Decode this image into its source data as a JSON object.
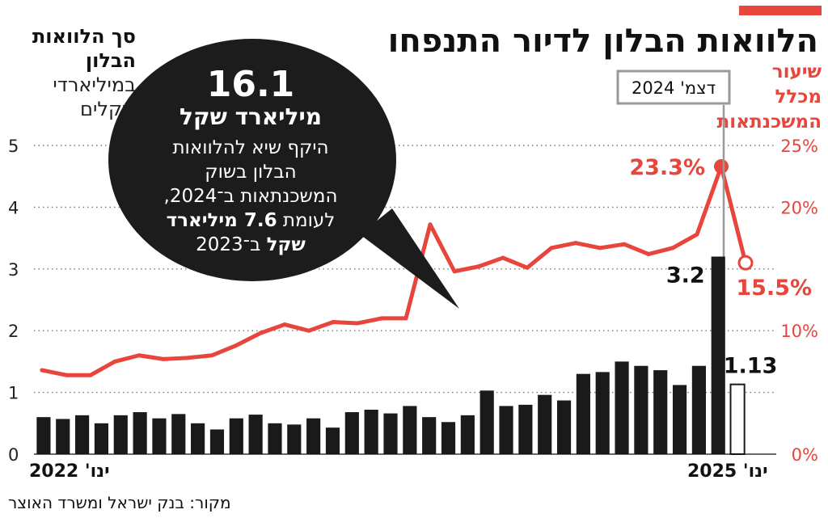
{
  "title": "הלוואות הבלון לדיור התנפחו",
  "left_axis_title": {
    "line1": "סך הלוואות",
    "line2": "הבלון",
    "line3": "במיליארדי",
    "line4": "שקלים"
  },
  "right_axis_title": {
    "line1": "שיעור",
    "line2": "מכלל",
    "line3": "המשכנתאות"
  },
  "callout": {
    "value": "16.1",
    "unit": "מיליארד שקל",
    "desc1": "היקף שיא להלוואות",
    "desc2": "הבלון בשוק",
    "desc3": "המשכנתאות ב־2024,",
    "desc4": "לעומת",
    "desc4_bold": "7.6 מיליארד",
    "desc5_bold": "שקל",
    "desc5": "ב־2023"
  },
  "peak_tag": "דצמ' 2024",
  "x_start_label": "ינו' 2022",
  "x_end_label": "ינו' 2025",
  "source": "מקור: בנק ישראל ומשרד האוצר",
  "colors": {
    "accent": "#e8453c",
    "bar": "#1a1a1a",
    "bubble": "#1c1c1c"
  },
  "chart_data": {
    "type": "bar",
    "title": "הלוואות הבלון לדיור התנפחו",
    "x_range": [
      "ינו' 2022",
      "ינו' 2025"
    ],
    "left_axis": {
      "label": "סך הלוואות הבלון במיליארדי שקלים",
      "ylim": [
        0,
        5
      ],
      "ticks": [
        "0",
        "1",
        "2",
        "3",
        "4",
        "5"
      ]
    },
    "right_axis": {
      "label": "שיעור מכלל המשכנתאות",
      "ylim": [
        0,
        25
      ],
      "ticks": [
        "0%",
        "10%",
        "20%",
        "25%"
      ]
    },
    "series": [
      {
        "name": "סך הלוואות הבלון",
        "type": "bar",
        "values": [
          0.6,
          0.57,
          0.63,
          0.5,
          0.63,
          0.68,
          0.58,
          0.65,
          0.5,
          0.4,
          0.58,
          0.64,
          0.5,
          0.48,
          0.58,
          0.43,
          0.68,
          0.72,
          0.66,
          0.78,
          0.6,
          0.52,
          0.63,
          1.03,
          0.78,
          0.8,
          0.96,
          0.87,
          1.3,
          1.33,
          1.5,
          1.43,
          1.36,
          1.12,
          1.43,
          3.2,
          1.13
        ],
        "last_value_outlined": true
      },
      {
        "name": "שיעור מכלל המשכנתאות",
        "type": "line",
        "values": [
          6.8,
          6.4,
          6.4,
          7.5,
          8.0,
          7.7,
          7.8,
          8.0,
          8.8,
          9.8,
          10.5,
          10.0,
          10.7,
          10.6,
          11.0,
          11.0,
          18.6,
          14.8,
          15.2,
          15.9,
          15.1,
          16.7,
          17.1,
          16.7,
          17.0,
          16.2,
          16.7,
          17.8,
          23.3,
          15.5
        ]
      }
    ],
    "annotations": [
      {
        "text": "3.2",
        "series": "סך הלוואות הבלון",
        "index": 35
      },
      {
        "text": "1.13",
        "series": "סך הלוואות הבלון",
        "index": 36
      },
      {
        "text": "23.3%",
        "series": "שיעור מכלל המשכנתאות",
        "index": 28
      },
      {
        "text": "15.5%",
        "series": "שיעור מכלל המשכנתאות",
        "index": 29
      }
    ]
  }
}
